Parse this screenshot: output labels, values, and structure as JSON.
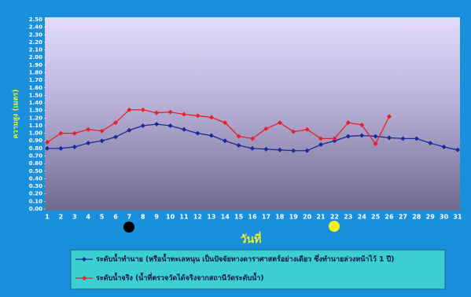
{
  "chart_data": {
    "type": "line",
    "y_label": "ความสูง (เมตร)",
    "x_label": "วันที่",
    "categories": [
      "1",
      "2",
      "3",
      "4",
      "5",
      "6",
      "7",
      "8",
      "9",
      "10",
      "11",
      "12",
      "13",
      "14",
      "15",
      "16",
      "17",
      "18",
      "19",
      "20",
      "21",
      "22",
      "23",
      "24",
      "25",
      "26",
      "27",
      "28",
      "29",
      "30",
      "31"
    ],
    "series": [
      {
        "name": "ระดับน้ำทำนาย (หรือน้ำทะเลหนุน เป็นปัจจัยทางดาราศาสตร์อย่างเดียว ซึ่งทำนายล่วงหน้าไว้ 1 ปี)",
        "color": "#1a2a9a",
        "values": [
          0.8,
          0.8,
          0.82,
          0.87,
          0.9,
          0.95,
          1.04,
          1.1,
          1.12,
          1.1,
          1.05,
          1.0,
          0.97,
          0.9,
          0.84,
          0.8,
          0.79,
          0.78,
          0.77,
          0.77,
          0.85,
          0.9,
          0.96,
          0.97,
          0.96,
          0.94,
          0.93,
          0.93,
          0.87,
          0.82,
          0.78
        ]
      },
      {
        "name": "ระดับน้ำจริง (น้ำที่ตรวจวัดได้จริงจากสถานีวัดระดับน้ำ)",
        "color": "#e8202a",
        "values": [
          0.88,
          1.0,
          1.0,
          1.05,
          1.03,
          1.14,
          1.31,
          1.31,
          1.27,
          1.28,
          1.25,
          1.23,
          1.21,
          1.14,
          0.96,
          0.93,
          1.06,
          1.14,
          1.02,
          1.05,
          0.93,
          0.93,
          1.14,
          1.11,
          0.86,
          1.22,
          null,
          null,
          null,
          null,
          null
        ]
      }
    ],
    "ylim": [
      0,
      2.5
    ],
    "yticks": [
      {
        "value": 0,
        "label": "0.00"
      },
      {
        "value": 0.1,
        "label": "0.10"
      },
      {
        "value": 0.2,
        "label": "0.20"
      },
      {
        "value": 0.3,
        "label": "0.30"
      },
      {
        "value": 0.4,
        "label": "0.40"
      },
      {
        "value": 0.5,
        "label": "0.50"
      },
      {
        "value": 0.6,
        "label": "0.60"
      },
      {
        "value": 0.7,
        "label": "0.70"
      },
      {
        "value": 0.8,
        "label": "0.80"
      },
      {
        "value": 0.9,
        "label": "0.90"
      },
      {
        "value": 1.0,
        "label": "1.00"
      },
      {
        "value": 1.1,
        "label": "1.10"
      },
      {
        "value": 1.2,
        "label": "1.20"
      },
      {
        "value": 1.3,
        "label": "1.30"
      },
      {
        "value": 1.4,
        "label": "1.40"
      },
      {
        "value": 1.5,
        "label": "1.50"
      },
      {
        "value": 1.6,
        "label": "1.60"
      },
      {
        "value": 1.7,
        "label": "1.70"
      },
      {
        "value": 1.8,
        "label": "1.80"
      },
      {
        "value": 1.9,
        "label": "1.90"
      },
      {
        "value": 2.0,
        "label": "2.00"
      },
      {
        "value": 2.1,
        "label": "2.10"
      },
      {
        "value": 2.2,
        "label": "2.20"
      },
      {
        "value": 2.3,
        "label": "2.30"
      },
      {
        "value": 2.4,
        "label": "2.40"
      },
      {
        "value": 2.5,
        "label": "2.50"
      }
    ],
    "grid": false
  }
}
